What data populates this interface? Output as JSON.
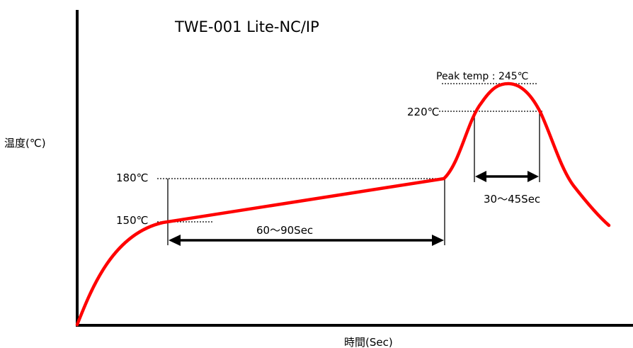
{
  "title": "TWE-001 Lite-NC/IP",
  "y_axis_label": "温度(℃)",
  "x_axis_label": "時間(Sec)",
  "temperature_labels": {
    "t150": "150℃",
    "t180": "180℃",
    "t220": "220℃",
    "peak": "Peak temp : 245℃"
  },
  "duration_labels": {
    "preheat": "60～90Sec",
    "reflow": "30～45Sec"
  },
  "colors": {
    "profile_curve": "#ff0000",
    "axes": "#000000",
    "guide_lines": "#000000"
  }
}
